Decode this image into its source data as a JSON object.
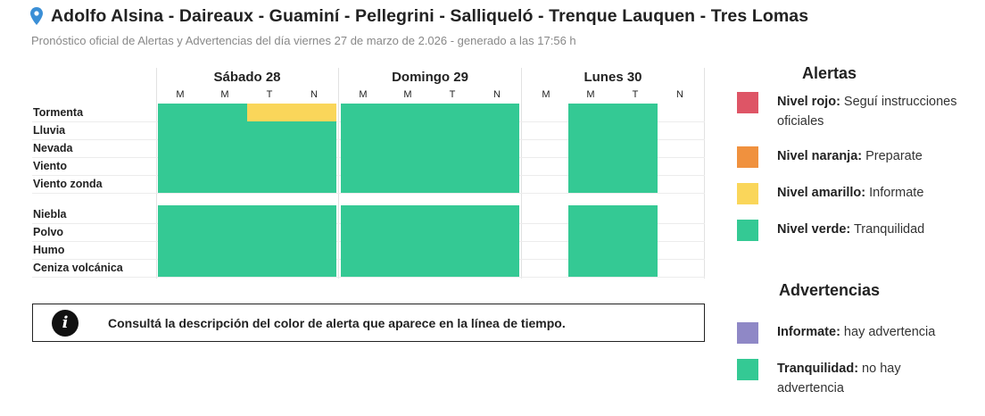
{
  "header": {
    "title": "Adolfo Alsina - Daireaux - Guaminí - Pellegrini - Salliqueló - Trenque Lauquen - Tres Lomas",
    "subtitle": "Pronóstico oficial de Alertas y Advertencias del día viernes 27 de marzo de 2.026 - generado a las 17:56 h"
  },
  "days": [
    {
      "label": "Sábado 28",
      "periods": [
        "M",
        "M",
        "T",
        "N"
      ]
    },
    {
      "label": "Domingo 29",
      "periods": [
        "M",
        "M",
        "T",
        "N"
      ]
    },
    {
      "label": "Lunes 30",
      "periods": [
        "M",
        "M",
        "T",
        "N"
      ]
    }
  ],
  "colors": {
    "rojo": "#de5566",
    "naranja": "#f0913e",
    "amarillo": "#fad65a",
    "verde": "#34c994",
    "violeta": "#8f88c6",
    "none": ""
  },
  "rows": [
    {
      "label": "Tormenta",
      "levels": [
        "verde",
        "verde",
        "amarillo",
        "amarillo",
        "verde",
        "verde",
        "verde",
        "verde",
        "none",
        "verde",
        "verde",
        "none"
      ]
    },
    {
      "label": "Lluvia",
      "levels": [
        "verde",
        "verde",
        "verde",
        "verde",
        "verde",
        "verde",
        "verde",
        "verde",
        "none",
        "verde",
        "verde",
        "none"
      ]
    },
    {
      "label": "Nevada",
      "levels": [
        "verde",
        "verde",
        "verde",
        "verde",
        "verde",
        "verde",
        "verde",
        "verde",
        "none",
        "verde",
        "verde",
        "none"
      ]
    },
    {
      "label": "Viento",
      "levels": [
        "verde",
        "verde",
        "verde",
        "verde",
        "verde",
        "verde",
        "verde",
        "verde",
        "none",
        "verde",
        "verde",
        "none"
      ]
    },
    {
      "label": "Viento zonda",
      "levels": [
        "verde",
        "verde",
        "verde",
        "verde",
        "verde",
        "verde",
        "verde",
        "verde",
        "none",
        "verde",
        "verde",
        "none"
      ]
    },
    {
      "label": "Niebla",
      "levels": [
        "verde",
        "verde",
        "verde",
        "verde",
        "verde",
        "verde",
        "verde",
        "verde",
        "none",
        "verde",
        "verde",
        "none"
      ]
    },
    {
      "label": "Polvo",
      "levels": [
        "verde",
        "verde",
        "verde",
        "verde",
        "verde",
        "verde",
        "verde",
        "verde",
        "none",
        "verde",
        "verde",
        "none"
      ]
    },
    {
      "label": "Humo",
      "levels": [
        "verde",
        "verde",
        "verde",
        "verde",
        "verde",
        "verde",
        "verde",
        "verde",
        "none",
        "verde",
        "verde",
        "none"
      ]
    },
    {
      "label": "Ceniza volcánica",
      "levels": [
        "verde",
        "verde",
        "verde",
        "verde",
        "verde",
        "verde",
        "verde",
        "verde",
        "none",
        "verde",
        "verde",
        "none"
      ]
    }
  ],
  "info": {
    "icon": "info-icon",
    "glyph": "i",
    "text": "Consultá la descripción del color de alerta que aparece en la línea de tiempo."
  },
  "legend": {
    "alertas_title": "Alertas",
    "alertas": [
      {
        "name": "Nivel rojo:",
        "desc": "Seguí instrucciones oficiales",
        "color": "#de5566"
      },
      {
        "name": "Nivel naranja:",
        "desc": "Preparate",
        "color": "#f0913e"
      },
      {
        "name": "Nivel amarillo:",
        "desc": "Informate",
        "color": "#fad65a"
      },
      {
        "name": "Nivel verde:",
        "desc": "Tranquilidad",
        "color": "#34c994"
      }
    ],
    "advertencias_title": "Advertencias",
    "advertencias": [
      {
        "name": "Informate:",
        "desc": "hay advertencia",
        "color": "#8f88c6"
      },
      {
        "name": "Tranquilidad:",
        "desc": "no hay advertencia",
        "color": "#34c994"
      }
    ]
  }
}
